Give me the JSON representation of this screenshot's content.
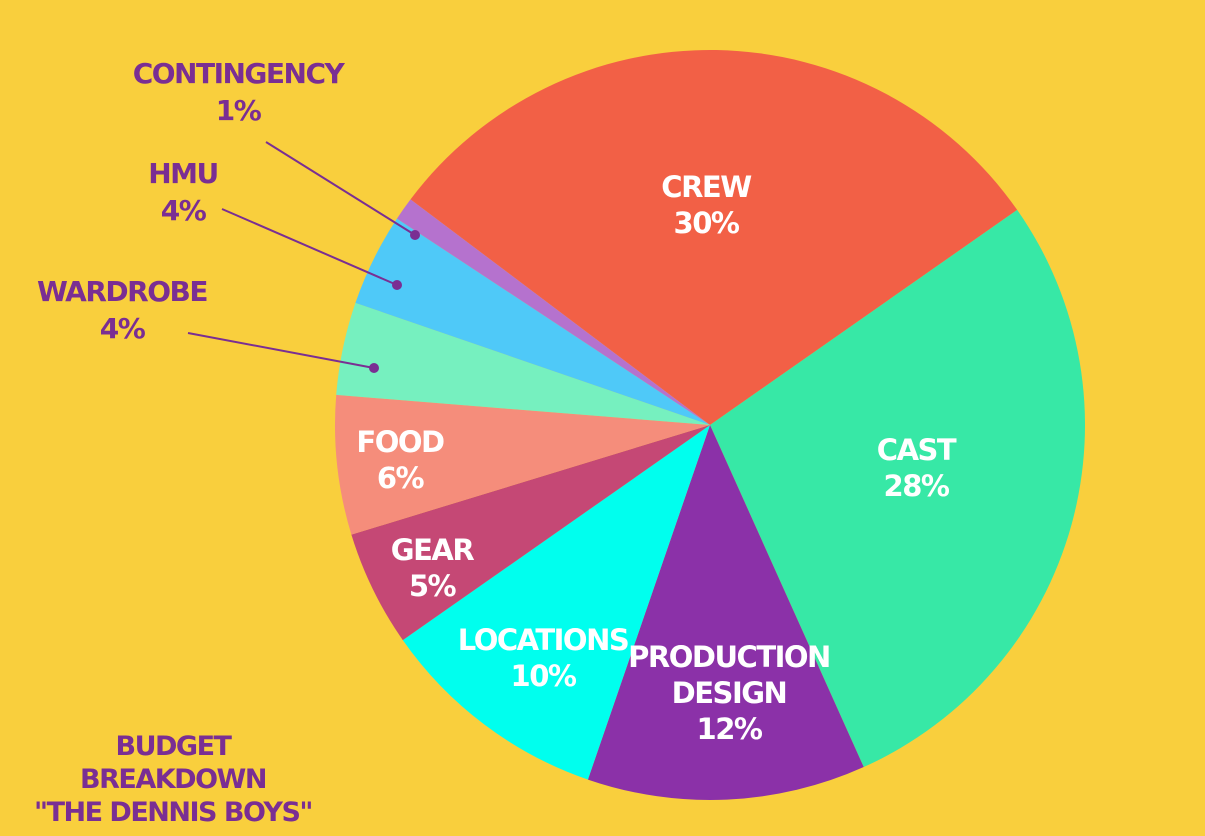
{
  "title_line1": "BUDGET BREAKDOWN",
  "title_line2": "\"THE DENNIS BOYS\"",
  "chart_data": {
    "type": "pie",
    "title": "BUDGET BREAKDOWN \"THE DENNIS BOYS\"",
    "slices": [
      {
        "label": "CREW",
        "value": 30,
        "value_label": "30%",
        "color": "#F26046",
        "inside": true
      },
      {
        "label": "CAST",
        "value": 28,
        "value_label": "28%",
        "color": "#37E8A6",
        "inside": true
      },
      {
        "label": "PRODUCTION DESIGN",
        "value": 12,
        "value_label": "12%",
        "color": "#8B31A8",
        "inside": true
      },
      {
        "label": "LOCATIONS",
        "value": 10,
        "value_label": "10%",
        "color": "#00FFEE",
        "inside": true
      },
      {
        "label": "GEAR",
        "value": 5,
        "value_label": "5%",
        "color": "#C54875",
        "inside": true
      },
      {
        "label": "FOOD",
        "value": 6,
        "value_label": "6%",
        "color": "#F58D7B",
        "inside": true
      },
      {
        "label": "WARDROBE",
        "value": 4,
        "value_label": "4%",
        "color": "#76F0BF",
        "inside": false
      },
      {
        "label": "HMU",
        "value": 4,
        "value_label": "4%",
        "color": "#4FC9F8",
        "inside": false
      },
      {
        "label": "CONTINGENCY",
        "value": 1,
        "value_label": "1%",
        "color": "#B572CE",
        "inside": false
      }
    ],
    "label_color_inside": "#FFFFFF",
    "label_color_outside": "#7A2E93",
    "background": "#F9CF3D"
  }
}
